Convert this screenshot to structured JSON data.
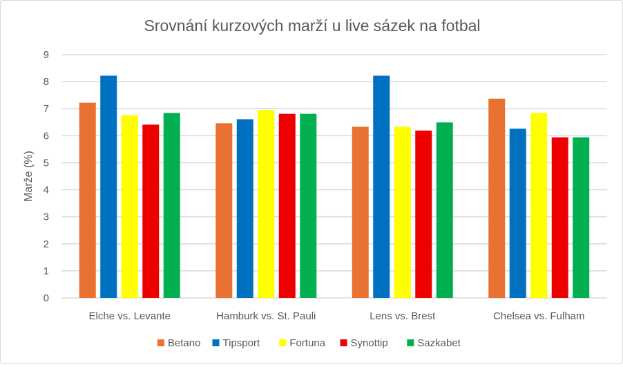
{
  "chart_data": {
    "type": "bar",
    "title": "Srovnání kurzových marží u live sázek na fotbal",
    "xlabel": "",
    "ylabel": "Marže (%)",
    "ylim": [
      0,
      9
    ],
    "yticks": [
      "0",
      "1",
      "2",
      "3",
      "4",
      "5",
      "6",
      "7",
      "8",
      "9"
    ],
    "grid": true,
    "legend_position": "bottom",
    "categories": [
      "Elche vs. Levante",
      "Hamburk vs. St. Pauli",
      "Lens vs. Brest",
      "Chelsea vs. Fulham"
    ],
    "series": [
      {
        "name": "Betano",
        "color": "#E97132",
        "values": [
          7.22,
          6.46,
          6.33,
          7.37
        ]
      },
      {
        "name": "Tipsport",
        "color": "#0070C0",
        "values": [
          8.22,
          6.61,
          8.22,
          6.26
        ]
      },
      {
        "name": "Fortuna",
        "color": "#FFFF00",
        "values": [
          6.76,
          6.95,
          6.33,
          6.84
        ]
      },
      {
        "name": "Synottip",
        "color": "#EE0000",
        "values": [
          6.41,
          6.81,
          6.19,
          5.94
        ]
      },
      {
        "name": "Sazkabet",
        "color": "#00B050",
        "values": [
          6.84,
          6.81,
          6.49,
          5.94
        ]
      }
    ]
  }
}
